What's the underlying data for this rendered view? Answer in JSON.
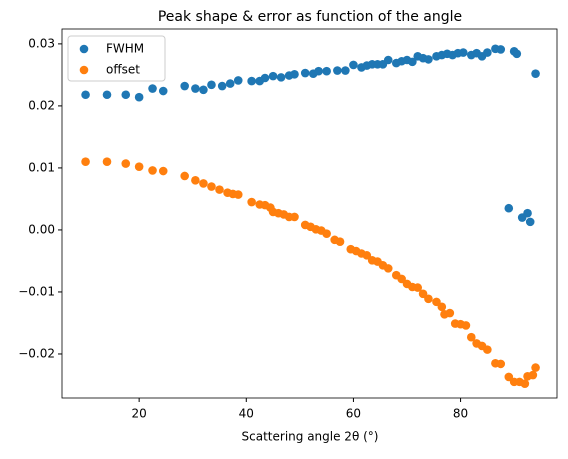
{
  "chart_data": {
    "type": "scatter",
    "title": "Peak shape & error as function of the angle",
    "x_label": "Scattering angle 2θ (°)",
    "xlim": [
      5.6,
      98
    ],
    "ylim": [
      -0.0271,
      0.0324
    ],
    "xticks": [
      20,
      40,
      60,
      80
    ],
    "yticks": [
      {
        "value": -0.02,
        "label": "−0.02"
      },
      {
        "value": -0.01,
        "label": "−0.01"
      },
      {
        "value": 0,
        "label": "0.00"
      },
      0.01,
      0.02,
      0.03
    ],
    "legend": "upper left",
    "series": [
      {
        "name": "FWHM",
        "color": "#1f77b4",
        "x": [
          10,
          14,
          17.5,
          20,
          22.5,
          24.5,
          28.5,
          30.5,
          32,
          33.5,
          35.5,
          37,
          38.5,
          41,
          42.5,
          43.5,
          45,
          46.5,
          48,
          49,
          51,
          52.5,
          53.5,
          55,
          57,
          58.5,
          60,
          61.5,
          62.5,
          63.5,
          64.5,
          65.5,
          66.5,
          68,
          69,
          70,
          71,
          72,
          73,
          74,
          75.5,
          76.5,
          77.5,
          78.5,
          79.5,
          80.5,
          82,
          83,
          84,
          85,
          86.5,
          87.5,
          89,
          90,
          90.5,
          91.5,
          92.5,
          93,
          94
        ],
        "values": [
          0.0218,
          0.0218,
          0.0218,
          0.0214,
          0.0228,
          0.0224,
          0.0232,
          0.0228,
          0.0226,
          0.0234,
          0.0232,
          0.0236,
          0.0241,
          0.024,
          0.024,
          0.0245,
          0.0248,
          0.0246,
          0.0249,
          0.0251,
          0.0253,
          0.0252,
          0.0256,
          0.0256,
          0.0257,
          0.0257,
          0.0266,
          0.0262,
          0.0265,
          0.0267,
          0.0267,
          0.0267,
          0.0274,
          0.0269,
          0.0272,
          0.0274,
          0.0271,
          0.028,
          0.0277,
          0.0275,
          0.028,
          0.0282,
          0.0284,
          0.0282,
          0.0285,
          0.0286,
          0.0282,
          0.0285,
          0.028,
          0.0286,
          0.0292,
          0.0291,
          0.0035,
          0.0288,
          0.0284,
          0.002,
          0.0027,
          0.0013,
          0.0252
        ]
      },
      {
        "name": "offset",
        "color": "#ff7f0e",
        "x": [
          10,
          14,
          17.5,
          20,
          22.5,
          24.5,
          28.5,
          30.5,
          32,
          33.5,
          35,
          36.5,
          37.5,
          38.5,
          41,
          42.5,
          43.5,
          44.5,
          45,
          46,
          47,
          48,
          49,
          51,
          52,
          53,
          54,
          55,
          56.5,
          57.5,
          59.5,
          60.5,
          61.5,
          62.5,
          63.5,
          64.5,
          65.5,
          66.5,
          68,
          69,
          70,
          71,
          72,
          73,
          74,
          75.5,
          76.5,
          77,
          78,
          79,
          80,
          81,
          82,
          83,
          84,
          85,
          86.5,
          87.5,
          89,
          90,
          91,
          92,
          92.5,
          93.5,
          94
        ],
        "values": [
          0.011,
          0.011,
          0.0107,
          0.0102,
          0.0096,
          0.0095,
          0.0087,
          0.008,
          0.0075,
          0.007,
          0.0065,
          0.006,
          0.0058,
          0.0057,
          0.0045,
          0.0041,
          0.004,
          0.0036,
          0.0029,
          0.0027,
          0.0025,
          0.0021,
          0.0021,
          0.0008,
          0.0005,
          0.0001,
          -0.0001,
          -0.0006,
          -0.0016,
          -0.0019,
          -0.0031,
          -0.0034,
          -0.0038,
          -0.0041,
          -0.0049,
          -0.0051,
          -0.0057,
          -0.0062,
          -0.0073,
          -0.0079,
          -0.0087,
          -0.0092,
          -0.0093,
          -0.0103,
          -0.0111,
          -0.0116,
          -0.0124,
          -0.0136,
          -0.0134,
          -0.0151,
          -0.0152,
          -0.0154,
          -0.0173,
          -0.0183,
          -0.0187,
          -0.0193,
          -0.0215,
          -0.0216,
          -0.0237,
          -0.0245,
          -0.0245,
          -0.0248,
          -0.0236,
          -0.0234,
          -0.0222
        ]
      }
    ]
  }
}
